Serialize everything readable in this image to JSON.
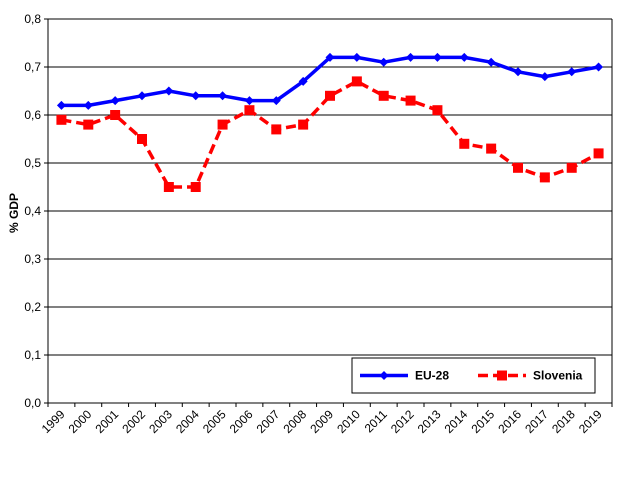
{
  "chart_data": {
    "type": "line",
    "title": "",
    "xlabel": "",
    "ylabel": "% GDP",
    "categories": [
      "1999",
      "2000",
      "2001",
      "2002",
      "2003",
      "2004",
      "2005",
      "2006",
      "2007",
      "2008",
      "2009",
      "2010",
      "2011",
      "2012",
      "2013",
      "2014",
      "2015",
      "2016",
      "2017",
      "2018",
      "2019"
    ],
    "ylim": [
      0,
      0.8
    ],
    "yticks": [
      "0,0",
      "0,1",
      "0,2",
      "0,3",
      "0,4",
      "0,5",
      "0,6",
      "0,7",
      "0,8"
    ],
    "grid": "horizontal",
    "legend_position": "bottom-right",
    "series": [
      {
        "name": "EU-28",
        "color": "#0000FF",
        "line_style": "solid",
        "marker": "diamond",
        "values": [
          0.62,
          0.62,
          0.63,
          0.64,
          0.65,
          0.64,
          0.64,
          0.63,
          0.63,
          0.67,
          0.72,
          0.72,
          0.71,
          0.72,
          0.72,
          0.72,
          0.71,
          0.69,
          0.68,
          0.69,
          0.7
        ]
      },
      {
        "name": "Slovenia",
        "color": "#FF0000",
        "line_style": "dashed",
        "marker": "square",
        "values": [
          0.59,
          0.58,
          0.6,
          0.55,
          0.45,
          0.45,
          0.58,
          0.61,
          0.57,
          0.58,
          0.64,
          0.67,
          0.64,
          0.63,
          0.61,
          0.54,
          0.53,
          0.49,
          0.47,
          0.49,
          0.52
        ]
      }
    ]
  }
}
